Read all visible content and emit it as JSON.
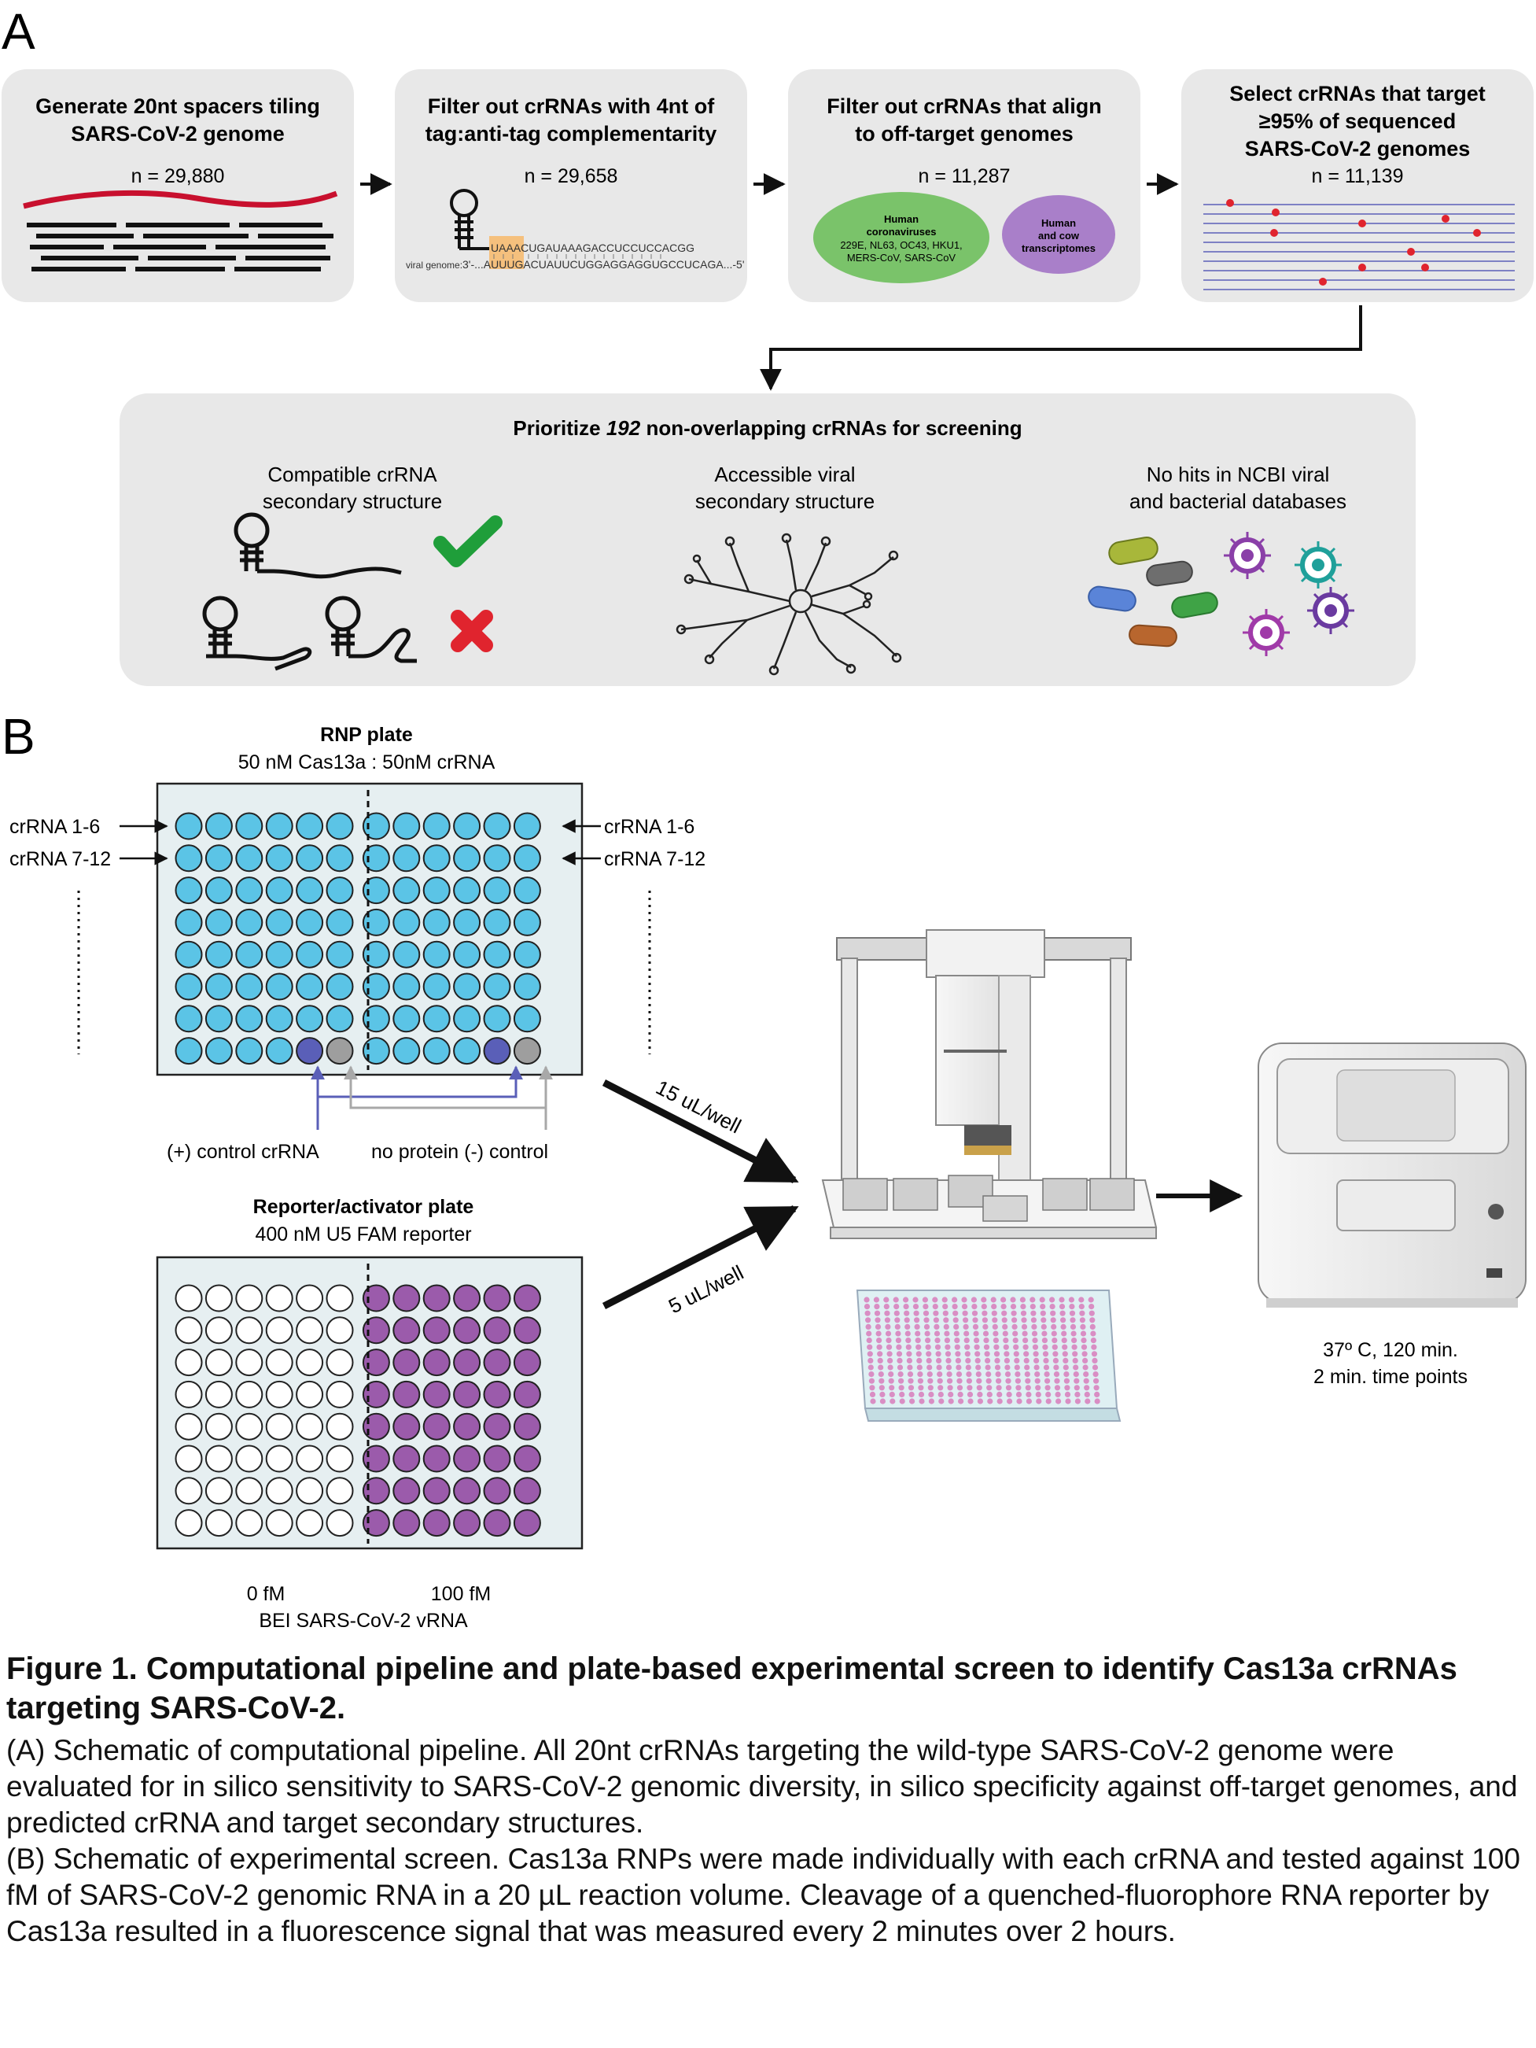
{
  "panel_a": {
    "label": "A",
    "steps": [
      {
        "title_lines": [
          "Generate 20nt spacers tiling",
          "SARS-CoV-2 genome"
        ],
        "count": "n = 29,880"
      },
      {
        "title_lines": [
          "Filter out crRNAs with 4nt of",
          "tag:anti-tag complementarity"
        ],
        "count": "n = 29,658",
        "seq_top": "UAAACUGAUAAAGACCUCCUCCACGG",
        "viral_label": "viral genome:",
        "seq_bottom": "3'-...AUUUGACUAUUCUGGAGGAGGUGCCUCAGA...-5'"
      },
      {
        "title_lines": [
          "Filter out crRNAs that align",
          "to off-target genomes"
        ],
        "count": "n = 11,287",
        "green_lines": [
          "Human",
          "coronaviruses",
          "229E, NL63, OC43, HKU1,",
          "MERS-CoV, SARS-CoV"
        ],
        "purple_lines": [
          "Human",
          "and cow",
          "transcriptomes"
        ]
      },
      {
        "title_lines": [
          "Select crRNAs that target",
          "≥95% of sequenced",
          "SARS-CoV-2 genomes"
        ],
        "count": "n = 11,139"
      }
    ],
    "prioritize": {
      "title_pre": "Prioritize ",
      "title_num": "192",
      "title_post": " non-overlapping crRNAs for screening",
      "col1_lines": [
        "Compatible crRNA",
        "secondary structure"
      ],
      "col2_lines": [
        "Accessible viral",
        "secondary structure"
      ],
      "col3_lines": [
        "No hits in NCBI viral",
        "and bacterial databases"
      ]
    }
  },
  "panel_b": {
    "label": "B",
    "rnp_title": "RNP plate",
    "rnp_subtitle": "50 nM Cas13a : 50nM crRNA",
    "row_label_1": "crRNA 1-6",
    "row_label_2": "crRNA 7-12",
    "pos_control": "(+) control crRNA",
    "neg_control": "no protein (-) control",
    "rep_title": "Reporter/activator plate",
    "rep_subtitle": "400 nM U5 FAM reporter",
    "left_conc": "0 fM",
    "right_conc": "100 fM",
    "vrna_label": "BEI SARS-CoV-2 vRNA",
    "arrow_top_label": "15 uL/well",
    "arrow_bottom_label": "5 uL/well",
    "reader_lines": [
      "37º C, 120 min.",
      "2 min. time points"
    ]
  },
  "colors": {
    "box_fill": "#e8e8e8",
    "rnp_well": "#5bc4e6",
    "pos_control_well": "#5a5fb8",
    "neg_control_well": "#9e9e9e",
    "reporter_well": "#9b5bab",
    "plate_fill": "#e6eff1",
    "genome_red": "#c8102e",
    "check_green": "#1f9e3a",
    "cross_red": "#e0242e",
    "green_ellipse": "#7ac36a",
    "purple_ellipse": "#a97fc9",
    "control_line_blue": "#5a5fb8",
    "control_line_gray": "#a8a8a8"
  },
  "caption": {
    "title": "Figure 1. Computational pipeline and plate-based experimental screen to identify Cas13a crRNAs targeting SARS-CoV-2.",
    "para_a": "(A) Schematic of computational pipeline. All 20nt crRNAs targeting the wild-type SARS-CoV-2 genome were evaluated for in silico sensitivity to SARS-CoV-2 genomic diversity, in silico specificity against off-target genomes, and predicted crRNA and target secondary structures.",
    "para_b": "(B) Schematic of experimental screen. Cas13a RNPs were made individually with each crRNA and tested against 100 fM of SARS-CoV-2 genomic RNA in a 20 µL reaction volume. Cleavage of a quenched-fluorophore RNA reporter by Cas13a resulted in a fluorescence signal that was measured every 2 minutes over 2 hours."
  }
}
